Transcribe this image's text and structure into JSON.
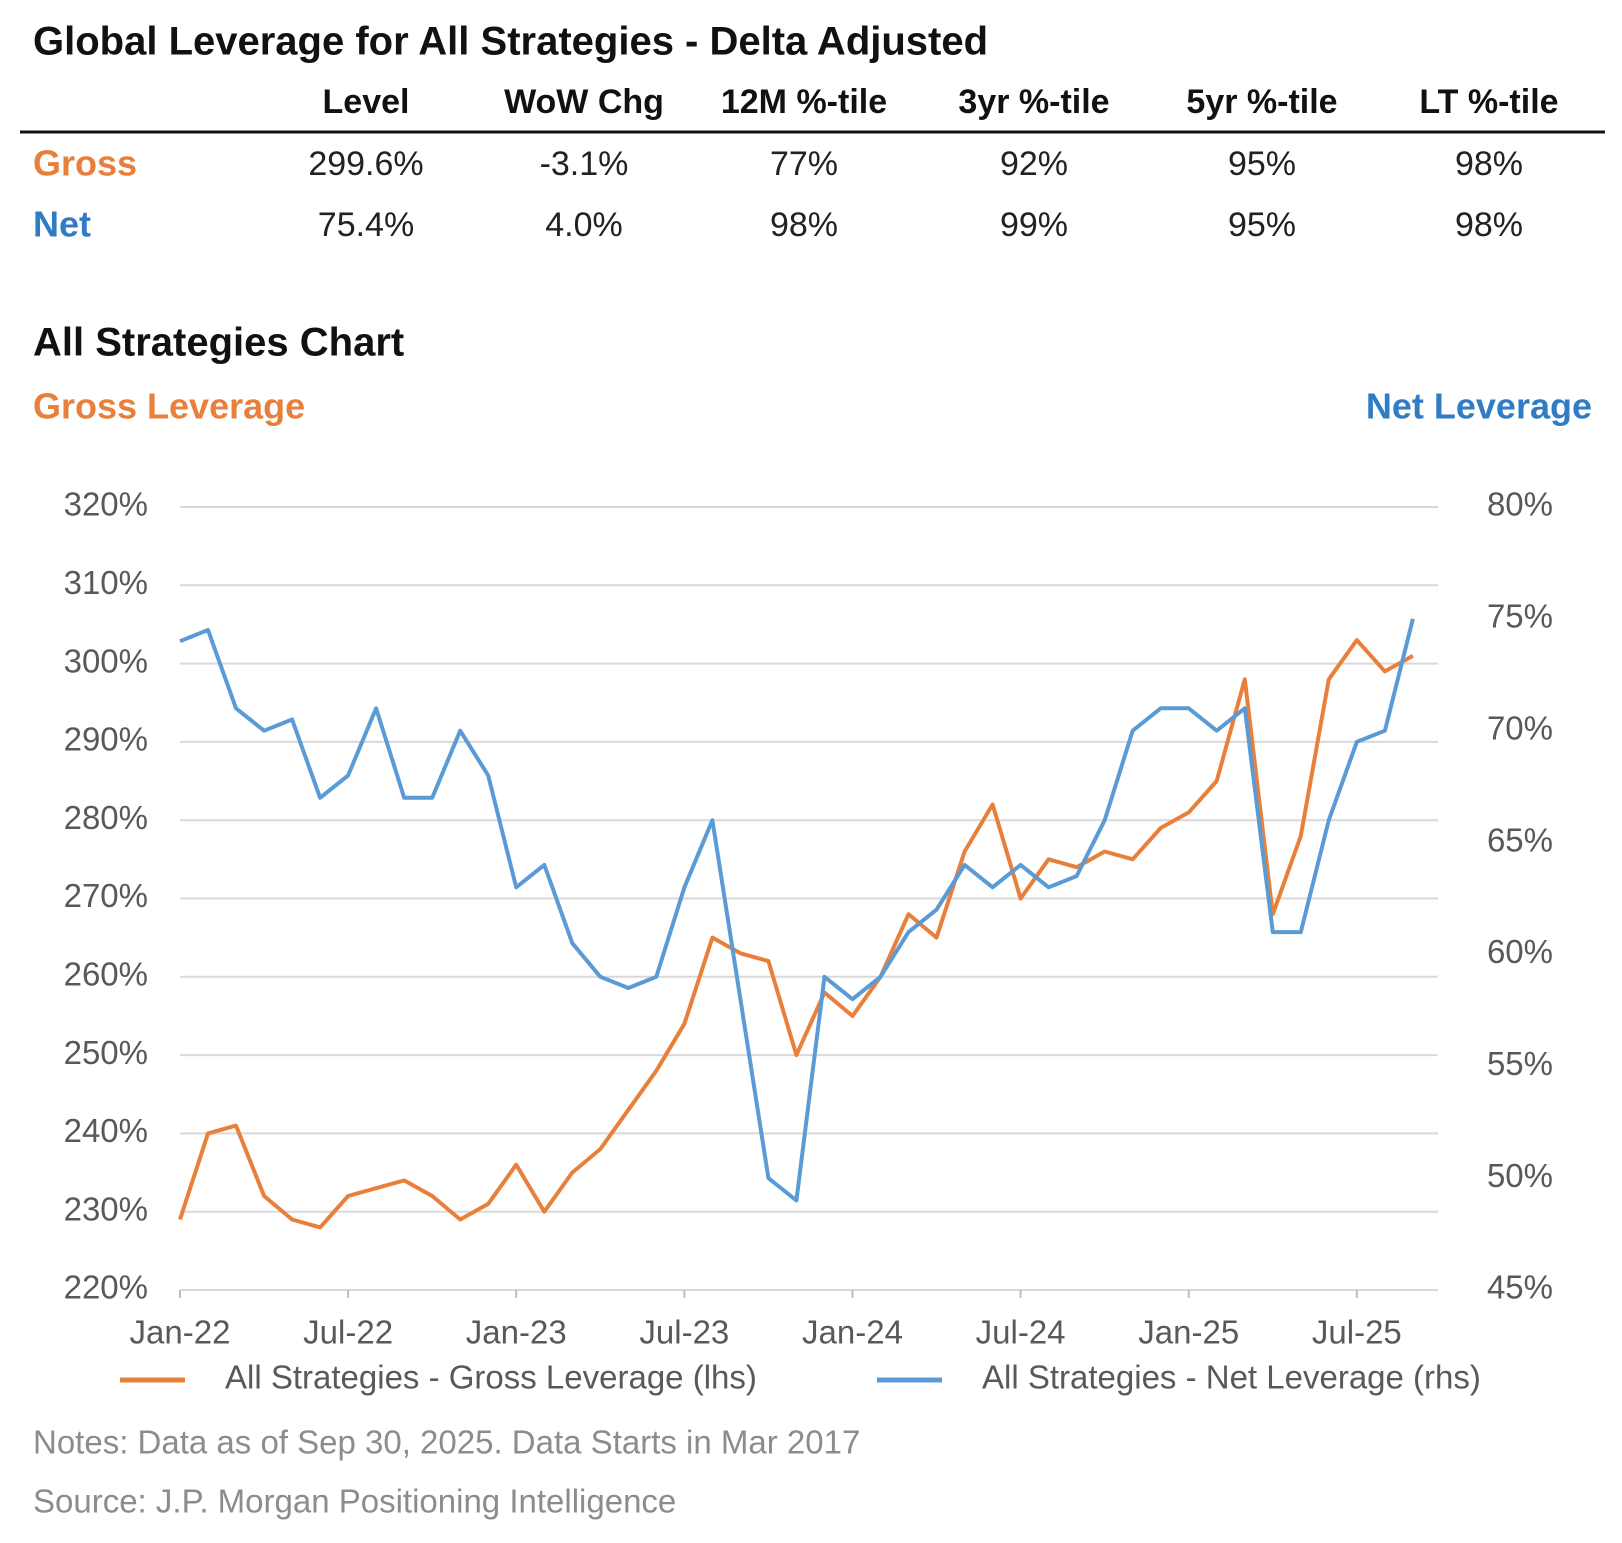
{
  "header": {
    "title": "Global Leverage for All Strategies - Delta Adjusted"
  },
  "table": {
    "columns": [
      "Level",
      "WoW Chg",
      "12M %-tile",
      "3yr %-tile",
      "5yr %-tile",
      "LT %-tile"
    ],
    "rows": [
      {
        "label": "Gross",
        "color": "#e8803c",
        "values": [
          "299.6%",
          "-3.1%",
          "77%",
          "92%",
          "95%",
          "98%"
        ]
      },
      {
        "label": "Net",
        "color": "#2f7bc4",
        "values": [
          "75.4%",
          "4.0%",
          "98%",
          "99%",
          "95%",
          "98%"
        ]
      }
    ]
  },
  "chart_data": {
    "type": "line",
    "title": "All Strategies Chart",
    "ylabel": "Gross Leverage",
    "y2label": "Net Leverage",
    "categories": [
      "Jan-22",
      null,
      null,
      null,
      null,
      null,
      "Jul-22",
      null,
      null,
      null,
      null,
      null,
      "Jan-23",
      null,
      null,
      null,
      null,
      null,
      "Jul-23",
      null,
      null,
      null,
      null,
      null,
      "Jan-24",
      null,
      null,
      null,
      null,
      null,
      "Jul-24",
      null,
      null,
      null,
      null,
      null,
      "Jan-25",
      null,
      null,
      null,
      null,
      null,
      "Jul-25",
      null,
      null
    ],
    "series": [
      {
        "name": "All Strategies - Gross Leverage (lhs)",
        "color": "#e8803c",
        "axis": "y",
        "values": [
          229,
          240,
          241,
          232,
          229,
          228,
          232,
          233,
          234,
          232,
          229,
          231,
          236,
          230,
          235,
          238,
          243,
          248,
          254,
          265,
          263,
          262,
          250,
          258,
          255,
          260,
          268,
          265,
          276,
          282,
          270,
          275,
          274,
          276,
          275,
          279,
          281,
          285,
          298,
          268,
          278,
          298,
          303,
          299,
          301
        ]
      },
      {
        "name": "All Strategies - Net Leverage (rhs)",
        "color": "#5b9bd5",
        "axis": "y2",
        "values": [
          74,
          74.5,
          71,
          70,
          70.5,
          67,
          68,
          71,
          67,
          67,
          70,
          68,
          63,
          64,
          60.5,
          59,
          58.5,
          59,
          63,
          66,
          58,
          50,
          49,
          59,
          58,
          59,
          61,
          62,
          64,
          63,
          64,
          63,
          63.5,
          66,
          70,
          71,
          71,
          70,
          71,
          61,
          61,
          66,
          69.5,
          70,
          75
        ]
      }
    ],
    "ylim": [
      220,
      320
    ],
    "yticks": [
      {
        "value": 220,
        "label": "220%"
      },
      {
        "value": 230,
        "label": "230%"
      },
      {
        "value": 240,
        "label": "240%"
      },
      {
        "value": 250,
        "label": "250%"
      },
      {
        "value": 260,
        "label": "260%"
      },
      {
        "value": 270,
        "label": "270%"
      },
      {
        "value": 280,
        "label": "280%"
      },
      {
        "value": 290,
        "label": "290%"
      },
      {
        "value": 300,
        "label": "300%"
      },
      {
        "value": 310,
        "label": "310%"
      },
      {
        "value": 320,
        "label": "320%"
      }
    ],
    "y2lim": [
      45,
      80
    ],
    "y2ticks": [
      {
        "value": 45,
        "label": "45%"
      },
      {
        "value": 50,
        "label": "50%"
      },
      {
        "value": 55,
        "label": "55%"
      },
      {
        "value": 60,
        "label": "60%"
      },
      {
        "value": 65,
        "label": "65%"
      },
      {
        "value": 70,
        "label": "70%"
      },
      {
        "value": 75,
        "label": "75%"
      },
      {
        "value": 80,
        "label": "80%"
      }
    ],
    "grid": true,
    "legend": "bottom"
  },
  "notes": "Notes: Data as of Sep 30, 2025. Data Starts in Mar 2017",
  "source": "Source: J.P. Morgan Positioning Intelligence"
}
